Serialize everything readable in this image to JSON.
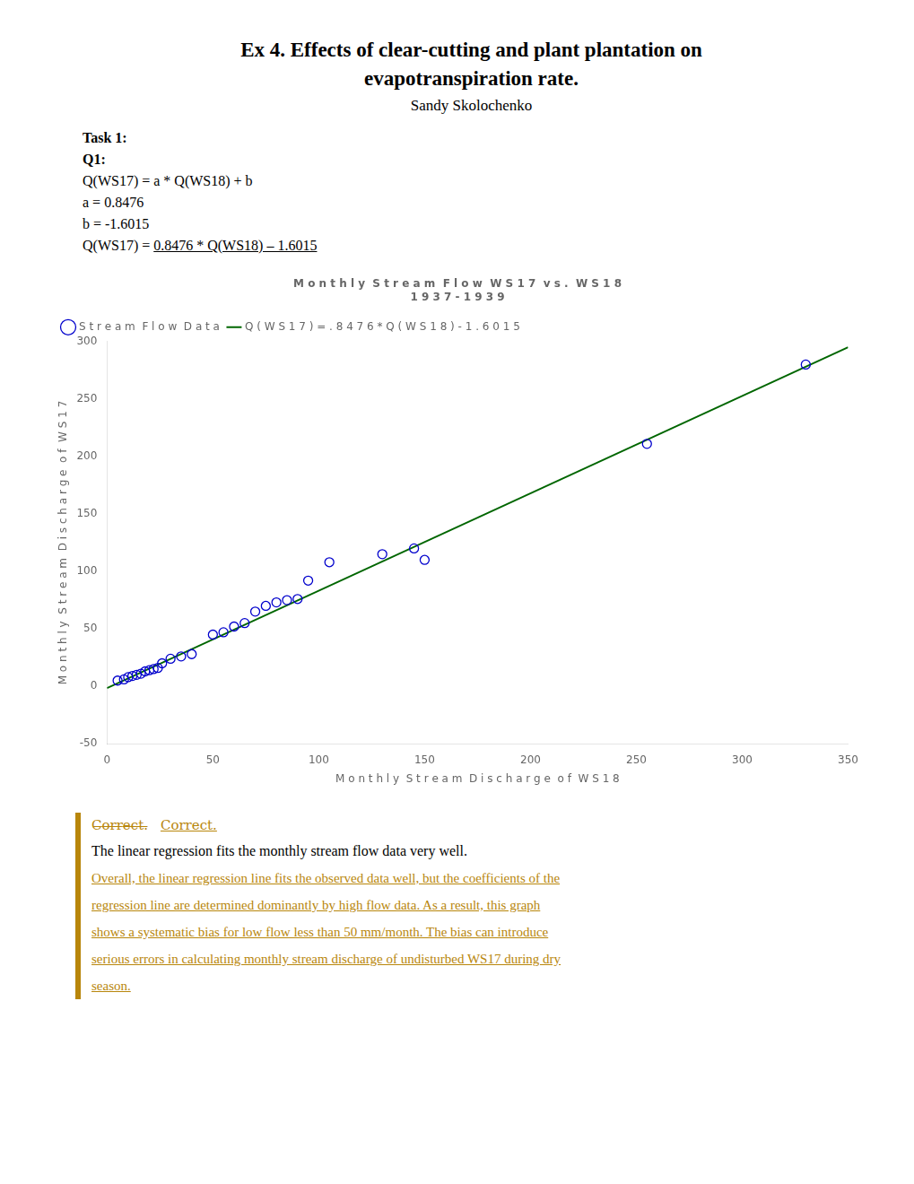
{
  "title": [
    "Ex 4. Effects of clear-cutting and plant plantation on",
    "evapotranspiration rate."
  ],
  "subtitle": "Sandy Skolochenko",
  "annotations": [
    {
      "text": "Task 1:"
    },
    {
      "text": "Q1:"
    },
    {
      "text": "Q(WS17) = a * Q(WS18) + b"
    },
    {
      "text": "a = 0.8476"
    },
    {
      "text": "b = -1.6015"
    },
    {
      "text": [
        "Q(WS17) = ",
        "0.8476 * Q(WS18) – 1.6015"
      ]
    }
  ],
  "chart_data": {
    "type": "scatter",
    "title": [
      "M o n t h l y  S t r e a m  F l o w  W S 1 7  v s .  W S 1 8",
      "1 9 3 7 - 1 9 3 9"
    ],
    "xlabel": "M o n t h l y  S t r e a m  D i s c h a r g e  o f  W S 1 8",
    "ylabel": "M o n t h l y  S t r e a m  D i s c h a r g e  o f  W S 1 7",
    "xlim": [
      0,
      350
    ],
    "ylim": [
      -50,
      300
    ],
    "xticks": [
      0,
      50,
      100,
      150,
      200,
      250,
      300,
      350
    ],
    "yticks": [
      -50,
      0,
      50,
      100,
      150,
      200,
      250,
      300
    ],
    "grid": false,
    "legend": "upper left",
    "series": [
      {
        "name": "S t r e a m  F l o w  D a t a",
        "type": "scatter",
        "color": "#0000cc",
        "marker": "circle",
        "x": [
          5,
          8,
          10,
          12,
          14,
          16,
          18,
          20,
          22,
          24,
          26,
          30,
          35,
          40,
          50,
          55,
          60,
          65,
          70,
          75,
          80,
          85,
          90,
          95,
          105,
          130,
          145,
          150,
          255,
          330
        ],
        "values": [
          5,
          6,
          8,
          9,
          10,
          11,
          13,
          14,
          15,
          16,
          20,
          24,
          26,
          28,
          45,
          47,
          52,
          55,
          65,
          70,
          73,
          75,
          76,
          92,
          108,
          115,
          120,
          110,
          211,
          280
        ]
      },
      {
        "name": "Q ( W S 1 7 ) = . 8 4 7 6 * Q ( W S 1 8 ) - 1 . 6 0 1 5",
        "type": "line",
        "color": "#006600",
        "line_style": "solid",
        "x": [
          0,
          350
        ],
        "values": [
          -1.6015,
          295.0585
        ]
      }
    ]
  },
  "feedback": {
    "color": "#b8860b",
    "marks": [
      "C̶o̶r̶r̶e̶c̶t̶.̶",
      "Correct."
    ],
    "text": "The linear regression fits the monthly stream flow data very well.",
    "lines": [
      "Overall, the linear regression line fits the observed data well, but the coefficients of the",
      "regression line are determined dominantly by high flow data. As a result, this graph",
      "shows a systematic bias for low flow less than 50 mm/month. The bias can introduce",
      "serious errors in calculating monthly stream discharge of undisturbed WS17 during dry",
      "season."
    ]
  }
}
